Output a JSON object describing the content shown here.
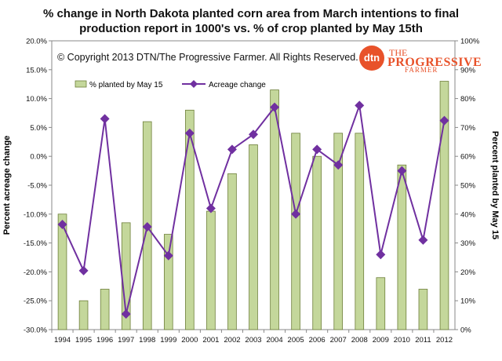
{
  "chart_data": {
    "type": "bar+line",
    "title_line1": "% change in North Dakota planted corn area from March intentions to final",
    "title_line2": "production report in 1000's vs. % of crop planted by May 15th",
    "copyright": "© Copyright 2013 DTN/The Progressive Farmer. All Rights Reserved.",
    "logo": {
      "dtn": "dtn",
      "word1": "THE",
      "word2": "PROGRESSIVE",
      "word3": "FARMER",
      "color": "#e8522a"
    },
    "categories": [
      "1994",
      "1995",
      "1996",
      "1997",
      "1998",
      "1999",
      "2000",
      "2001",
      "2002",
      "2003",
      "2004",
      "2005",
      "2006",
      "2007",
      "2008",
      "2009",
      "2010",
      "2011",
      "2012"
    ],
    "series": [
      {
        "name": "% planted by May 15",
        "axis": "right",
        "type": "bar",
        "color": "#c4d79b",
        "stroke": "#6e7f3a",
        "values": [
          40,
          10,
          14,
          37,
          72,
          33,
          76,
          41,
          54,
          64,
          83,
          68,
          60,
          68,
          68,
          18,
          57,
          14,
          86
        ]
      },
      {
        "name": "Acreage change",
        "axis": "left",
        "type": "line",
        "color": "#7030a0",
        "values": [
          -11.8,
          -19.8,
          6.5,
          -27.3,
          -12.2,
          -17.2,
          4.0,
          -9.0,
          1.2,
          3.8,
          8.5,
          -10.0,
          1.2,
          -1.5,
          8.8,
          -17.0,
          -2.5,
          -14.5,
          6.2
        ]
      }
    ],
    "y_left": {
      "label": "Percent acreage change",
      "min": -30,
      "max": 20,
      "step": 5,
      "ticks": [
        "-30.0%",
        "-25.0%",
        "-20.0%",
        "-15.0%",
        "-10.0%",
        "-5.0%",
        "0.0%",
        "5.0%",
        "10.0%",
        "15.0%",
        "20.0%"
      ]
    },
    "y_right": {
      "label": "Percent planted by May 15",
      "min": 0,
      "max": 100,
      "step": 10,
      "ticks": [
        "0%",
        "10%",
        "20%",
        "30%",
        "40%",
        "50%",
        "60%",
        "70%",
        "80%",
        "90%",
        "100%"
      ]
    },
    "legend_placement": "top-left",
    "grid": false
  }
}
